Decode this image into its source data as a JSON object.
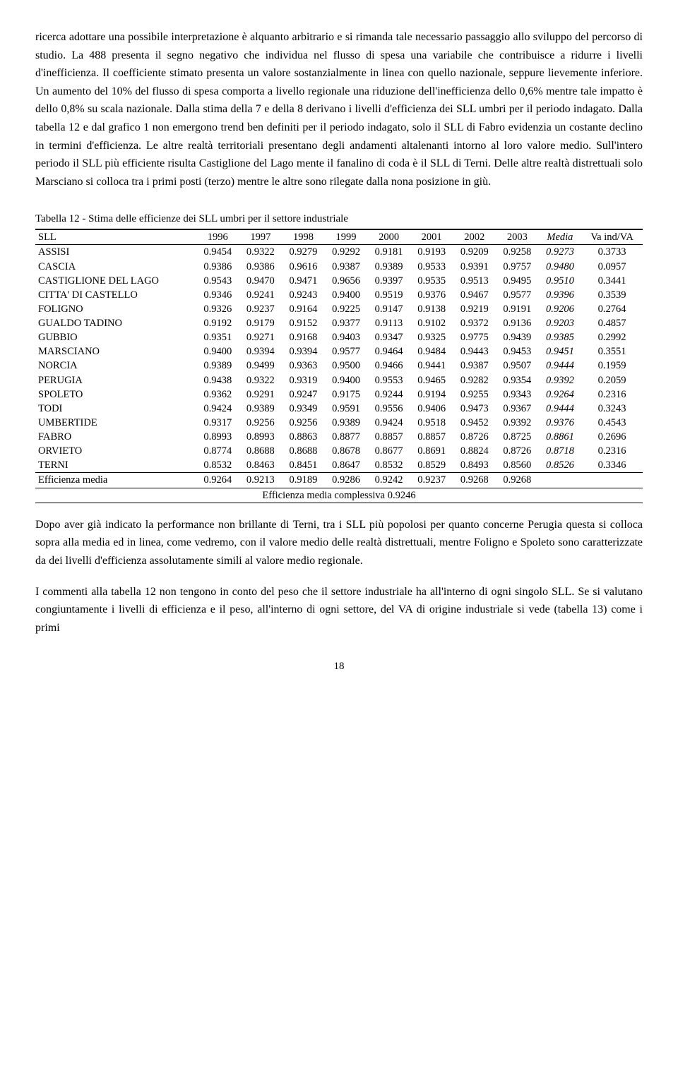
{
  "paragraphs": {
    "p1": "ricerca adottare una possibile interpretazione è alquanto arbitrario e si rimanda tale necessario passaggio allo sviluppo del percorso di studio. La 488 presenta il segno negativo che individua nel flusso di spesa una variabile che contribuisce a ridurre i livelli d'inefficienza. Il coefficiente stimato presenta un valore sostanzialmente in linea con quello nazionale, seppure lievemente inferiore. Un aumento del 10% del flusso di spesa comporta a livello regionale una riduzione dell'inefficienza dello 0,6% mentre tale impatto è dello 0,8% su scala nazionale. Dalla stima della 7 e della 8 derivano i livelli d'efficienza dei SLL umbri per il periodo indagato. Dalla tabella 12 e dal grafico 1 non emergono trend ben definiti per il periodo indagato, solo il SLL di Fabro evidenzia un costante declino in termini d'efficienza. Le altre realtà territoriali presentano degli andamenti altalenanti intorno al loro valore medio. Sull'intero periodo il SLL più efficiente risulta Castiglione del Lago mente il fanalino di coda è il SLL di Terni. Delle altre realtà distrettuali solo Marsciano si colloca tra i primi posti (terzo) mentre le altre sono rilegate dalla nona posizione in giù.",
    "p2": "Dopo aver già indicato la performance non brillante di Terni, tra i SLL più popolosi per quanto concerne Perugia questa si colloca sopra alla media ed in linea, come vedremo, con il valore medio delle realtà distrettuali, mentre Foligno e Spoleto sono caratterizzate da dei livelli d'efficienza assolutamente simili al valore medio regionale.",
    "p3": "I commenti alla tabella 12 non tengono in conto del peso che il settore industriale ha all'interno di ogni singolo SLL. Se si valutano congiuntamente i livelli di efficienza e il peso, all'interno di ogni settore, del VA di origine industriale si vede (tabella 13) come i primi"
  },
  "table": {
    "caption": "Tabella 12 - Stima delle efficienze dei SLL umbri per il settore industriale",
    "headers": [
      "SLL",
      "1996",
      "1997",
      "1998",
      "1999",
      "2000",
      "2001",
      "2002",
      "2003",
      "Media",
      "Va ind/VA"
    ],
    "rows": [
      {
        "sll": "ASSISI",
        "v": [
          "0.9454",
          "0.9322",
          "0.9279",
          "0.9292",
          "0.9181",
          "0.9193",
          "0.9209",
          "0.9258"
        ],
        "media": "0.9273",
        "va": "0.3733"
      },
      {
        "sll": "CASCIA",
        "v": [
          "0.9386",
          "0.9386",
          "0.9616",
          "0.9387",
          "0.9389",
          "0.9533",
          "0.9391",
          "0.9757"
        ],
        "media": "0.9480",
        "va": "0.0957"
      },
      {
        "sll": "CASTIGLIONE DEL LAGO",
        "v": [
          "0.9543",
          "0.9470",
          "0.9471",
          "0.9656",
          "0.9397",
          "0.9535",
          "0.9513",
          "0.9495"
        ],
        "media": "0.9510",
        "va": "0.3441"
      },
      {
        "sll": "CITTA' DI CASTELLO",
        "v": [
          "0.9346",
          "0.9241",
          "0.9243",
          "0.9400",
          "0.9519",
          "0.9376",
          "0.9467",
          "0.9577"
        ],
        "media": "0.9396",
        "va": "0.3539"
      },
      {
        "sll": "FOLIGNO",
        "v": [
          "0.9326",
          "0.9237",
          "0.9164",
          "0.9225",
          "0.9147",
          "0.9138",
          "0.9219",
          "0.9191"
        ],
        "media": "0.9206",
        "va": "0.2764"
      },
      {
        "sll": "GUALDO TADINO",
        "v": [
          "0.9192",
          "0.9179",
          "0.9152",
          "0.9377",
          "0.9113",
          "0.9102",
          "0.9372",
          "0.9136"
        ],
        "media": "0.9203",
        "va": "0.4857"
      },
      {
        "sll": "GUBBIO",
        "v": [
          "0.9351",
          "0.9271",
          "0.9168",
          "0.9403",
          "0.9347",
          "0.9325",
          "0.9775",
          "0.9439"
        ],
        "media": "0.9385",
        "va": "0.2992"
      },
      {
        "sll": "MARSCIANO",
        "v": [
          "0.9400",
          "0.9394",
          "0.9394",
          "0.9577",
          "0.9464",
          "0.9484",
          "0.9443",
          "0.9453"
        ],
        "media": "0.9451",
        "va": "0.3551"
      },
      {
        "sll": "NORCIA",
        "v": [
          "0.9389",
          "0.9499",
          "0.9363",
          "0.9500",
          "0.9466",
          "0.9441",
          "0.9387",
          "0.9507"
        ],
        "media": "0.9444",
        "va": "0.1959"
      },
      {
        "sll": "PERUGIA",
        "v": [
          "0.9438",
          "0.9322",
          "0.9319",
          "0.9400",
          "0.9553",
          "0.9465",
          "0.9282",
          "0.9354"
        ],
        "media": "0.9392",
        "va": "0.2059"
      },
      {
        "sll": "SPOLETO",
        "v": [
          "0.9362",
          "0.9291",
          "0.9247",
          "0.9175",
          "0.9244",
          "0.9194",
          "0.9255",
          "0.9343"
        ],
        "media": "0.9264",
        "va": "0.2316"
      },
      {
        "sll": "TODI",
        "v": [
          "0.9424",
          "0.9389",
          "0.9349",
          "0.9591",
          "0.9556",
          "0.9406",
          "0.9473",
          "0.9367"
        ],
        "media": "0.9444",
        "va": "0.3243"
      },
      {
        "sll": "UMBERTIDE",
        "v": [
          "0.9317",
          "0.9256",
          "0.9256",
          "0.9389",
          "0.9424",
          "0.9518",
          "0.9452",
          "0.9392"
        ],
        "media": "0.9376",
        "va": "0.4543"
      },
      {
        "sll": "FABRO",
        "v": [
          "0.8993",
          "0.8993",
          "0.8863",
          "0.8877",
          "0.8857",
          "0.8857",
          "0.8726",
          "0.8725"
        ],
        "media": "0.8861",
        "va": "0.2696"
      },
      {
        "sll": "ORVIETO",
        "v": [
          "0.8774",
          "0.8688",
          "0.8688",
          "0.8678",
          "0.8677",
          "0.8691",
          "0.8824",
          "0.8726"
        ],
        "media": "0.8718",
        "va": "0.2316"
      },
      {
        "sll": "TERNI",
        "v": [
          "0.8532",
          "0.8463",
          "0.8451",
          "0.8647",
          "0.8532",
          "0.8529",
          "0.8493",
          "0.8560"
        ],
        "media": "0.8526",
        "va": "0.3346"
      }
    ],
    "eff_media_label": "Efficienza media",
    "eff_media": [
      "0.9264",
      "0.9213",
      "0.9189",
      "0.9286",
      "0.9242",
      "0.9237",
      "0.9268",
      "0.9268"
    ],
    "overall_label": "Efficienza media complessiva 0.9246"
  },
  "page_number": "18",
  "style": {
    "font_family": "Times New Roman",
    "body_fontsize_pt": 12,
    "table_fontsize_pt": 11,
    "text_color": "#000000",
    "background_color": "#ffffff",
    "border_color": "#000000",
    "media_column_style": "italic"
  }
}
